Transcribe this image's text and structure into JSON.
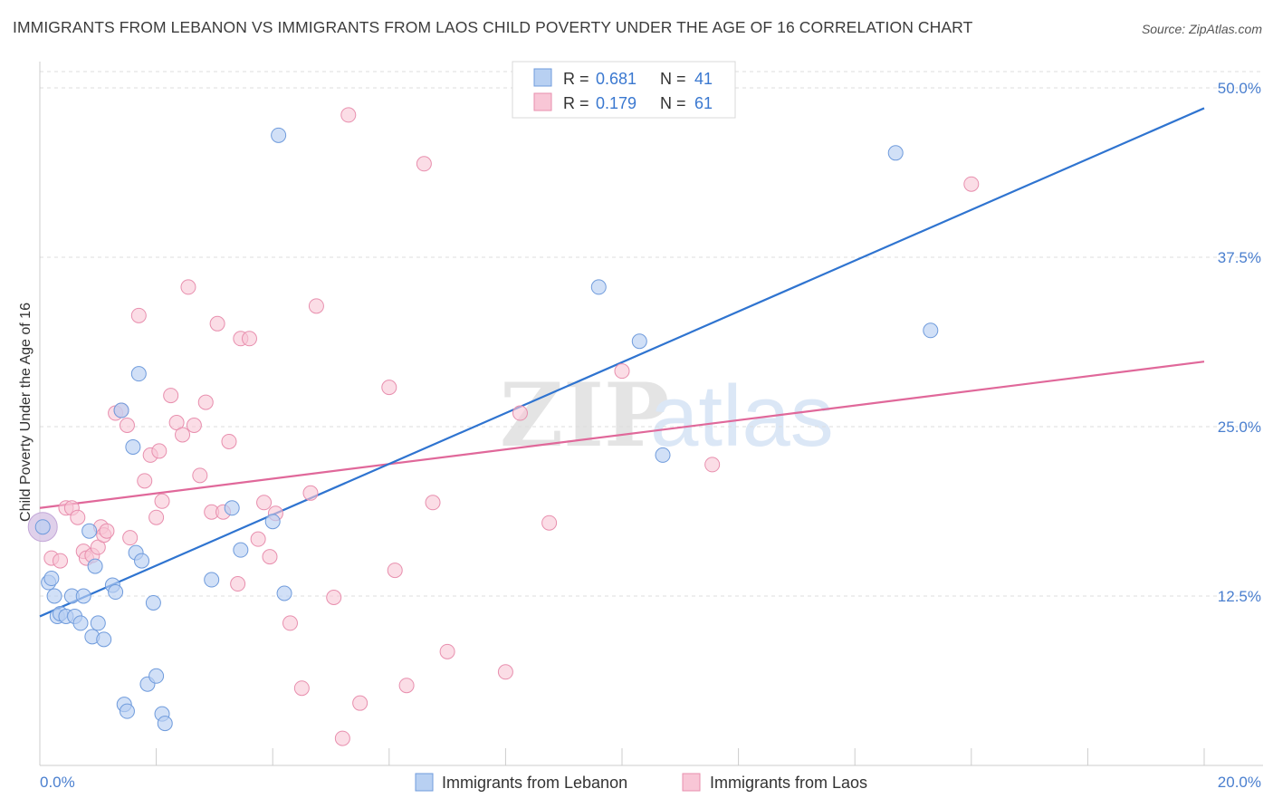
{
  "title": "IMMIGRANTS FROM LEBANON VS IMMIGRANTS FROM LAOS CHILD POVERTY UNDER THE AGE OF 16 CORRELATION CHART",
  "source": "Source: ZipAtlas.com",
  "watermark": {
    "zip": "ZIP",
    "atlas": "atlas"
  },
  "colors": {
    "lebanon_fill": "#b8d0f2",
    "lebanon_stroke": "#6f9bdc",
    "lebanon_line": "#2f74d0",
    "laos_fill": "#f8c6d6",
    "laos_stroke": "#e88fae",
    "laos_line": "#e0689a",
    "tick_color": "#4a7fcf",
    "grid": "#dddddd"
  },
  "legend": {
    "rows": [
      {
        "r_label": "R =",
        "r_value": "0.681",
        "n_label": "N =",
        "n_value": "41"
      },
      {
        "r_label": "R =",
        "r_value": "0.179",
        "n_label": "N =",
        "n_value": "61"
      }
    ]
  },
  "chart_data": {
    "type": "scatter",
    "title": "IMMIGRANTS FROM LEBANON VS IMMIGRANTS FROM LAOS CHILD POVERTY UNDER THE AGE OF 16 CORRELATION CHART",
    "xlabel": "",
    "ylabel": "Child Poverty Under the Age of 16",
    "xlim": [
      0,
      20
    ],
    "ylim": [
      0,
      50
    ],
    "x_tick_labels": [
      "0.0%",
      "20.0%"
    ],
    "y_ticks": [
      12.5,
      25.0,
      37.5,
      50.0
    ],
    "y_tick_labels": [
      "12.5%",
      "25.0%",
      "37.5%",
      "50.0%"
    ],
    "grid": true,
    "legend_position": "top-center",
    "series": [
      {
        "name": "Immigrants from Lebanon",
        "color": "#6f9bdc",
        "trend": {
          "x": [
            0,
            20
          ],
          "y": [
            11.0,
            48.5
          ]
        },
        "points": [
          [
            0.05,
            17.6
          ],
          [
            0.15,
            13.5
          ],
          [
            0.2,
            13.8
          ],
          [
            0.25,
            12.5
          ],
          [
            0.3,
            11.0
          ],
          [
            0.35,
            11.2
          ],
          [
            0.45,
            11.0
          ],
          [
            0.55,
            12.5
          ],
          [
            0.6,
            11.0
          ],
          [
            0.7,
            10.5
          ],
          [
            0.75,
            12.5
          ],
          [
            0.85,
            17.3
          ],
          [
            0.9,
            9.5
          ],
          [
            0.95,
            14.7
          ],
          [
            1.0,
            10.5
          ],
          [
            1.1,
            9.3
          ],
          [
            1.25,
            13.3
          ],
          [
            1.3,
            12.8
          ],
          [
            1.4,
            26.2
          ],
          [
            1.45,
            4.5
          ],
          [
            1.5,
            4.0
          ],
          [
            1.6,
            23.5
          ],
          [
            1.65,
            15.7
          ],
          [
            1.7,
            28.9
          ],
          [
            1.75,
            15.1
          ],
          [
            1.85,
            6.0
          ],
          [
            1.95,
            12.0
          ],
          [
            2.0,
            6.6
          ],
          [
            2.1,
            3.8
          ],
          [
            2.15,
            3.1
          ],
          [
            2.95,
            13.7
          ],
          [
            3.3,
            19.0
          ],
          [
            3.45,
            15.9
          ],
          [
            4.1,
            46.5
          ],
          [
            4.0,
            18.0
          ],
          [
            4.2,
            12.7
          ],
          [
            9.6,
            35.3
          ],
          [
            10.3,
            31.3
          ],
          [
            10.7,
            22.9
          ],
          [
            14.7,
            45.2
          ],
          [
            15.3,
            32.1
          ]
        ]
      },
      {
        "name": "Immigrants from Laos",
        "color": "#e88fae",
        "trend": {
          "x": [
            0,
            20
          ],
          "y": [
            19.0,
            29.8
          ]
        },
        "points": [
          [
            0.2,
            15.3
          ],
          [
            0.35,
            15.1
          ],
          [
            0.45,
            19.0
          ],
          [
            0.55,
            19.0
          ],
          [
            0.65,
            18.3
          ],
          [
            0.75,
            15.8
          ],
          [
            0.8,
            15.3
          ],
          [
            0.9,
            15.5
          ],
          [
            1.0,
            16.1
          ],
          [
            1.05,
            17.6
          ],
          [
            1.1,
            17.0
          ],
          [
            1.15,
            17.3
          ],
          [
            1.3,
            26.0
          ],
          [
            1.4,
            26.2
          ],
          [
            1.5,
            25.1
          ],
          [
            1.55,
            16.8
          ],
          [
            1.7,
            33.2
          ],
          [
            1.8,
            21.0
          ],
          [
            1.9,
            22.9
          ],
          [
            2.0,
            18.3
          ],
          [
            2.05,
            23.2
          ],
          [
            2.1,
            19.5
          ],
          [
            2.25,
            27.3
          ],
          [
            2.35,
            25.3
          ],
          [
            2.45,
            24.4
          ],
          [
            2.55,
            35.3
          ],
          [
            2.65,
            25.1
          ],
          [
            2.75,
            21.4
          ],
          [
            2.85,
            26.8
          ],
          [
            2.95,
            18.7
          ],
          [
            3.05,
            32.6
          ],
          [
            3.15,
            18.7
          ],
          [
            3.25,
            23.9
          ],
          [
            3.4,
            13.4
          ],
          [
            3.45,
            31.5
          ],
          [
            3.6,
            31.5
          ],
          [
            3.75,
            16.7
          ],
          [
            3.85,
            19.4
          ],
          [
            3.95,
            15.4
          ],
          [
            4.05,
            18.6
          ],
          [
            4.3,
            10.5
          ],
          [
            4.5,
            5.7
          ],
          [
            4.65,
            20.1
          ],
          [
            4.75,
            33.9
          ],
          [
            5.05,
            12.4
          ],
          [
            5.2,
            2.0
          ],
          [
            5.3,
            48.0
          ],
          [
            5.5,
            4.6
          ],
          [
            6.0,
            27.9
          ],
          [
            6.1,
            14.4
          ],
          [
            6.3,
            5.9
          ],
          [
            6.6,
            44.4
          ],
          [
            6.75,
            19.4
          ],
          [
            7.0,
            8.4
          ],
          [
            8.0,
            6.9
          ],
          [
            8.25,
            26.0
          ],
          [
            8.75,
            17.9
          ],
          [
            10.0,
            29.1
          ],
          [
            11.55,
            22.2
          ],
          [
            16.0,
            42.9
          ]
        ],
        "large_point": [
          0.05,
          17.6
        ]
      }
    ]
  },
  "bottom_legend": [
    {
      "label": "Immigrants from Lebanon"
    },
    {
      "label": "Immigrants from Laos"
    }
  ]
}
